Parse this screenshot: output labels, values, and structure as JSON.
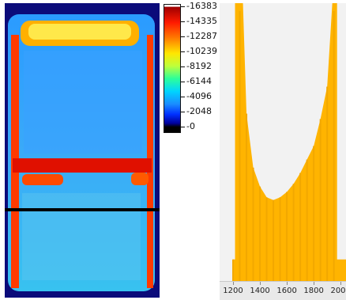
{
  "colors": {
    "base_blue": "#1e8cff",
    "hot_red": "#e01000",
    "histogram_fill": "#ffb400",
    "histogram_bg": "#f2f2f2",
    "line_profile": "#000000"
  },
  "colorbar": {
    "labels": [
      "16383",
      "14335",
      "12287",
      "10239",
      "8192",
      "6144",
      "4096",
      "2048",
      "0"
    ]
  },
  "chart_data": {
    "type": "bar",
    "title": "",
    "xlabel": "",
    "ylabel": "",
    "xlim": [
      1100,
      2040
    ],
    "x_ticks": [
      "1200",
      "1400",
      "1600",
      "1800",
      "2000"
    ],
    "x": [
      1200,
      1250,
      1300,
      1350,
      1400,
      1450,
      1500,
      1550,
      1600,
      1650,
      1700,
      1750,
      1800,
      1850,
      1900,
      1950
    ],
    "values": [
      0.08,
      1.0,
      0.62,
      0.42,
      0.35,
      0.31,
      0.3,
      0.31,
      0.33,
      0.36,
      0.4,
      0.45,
      0.5,
      0.6,
      0.72,
      1.0
    ]
  }
}
